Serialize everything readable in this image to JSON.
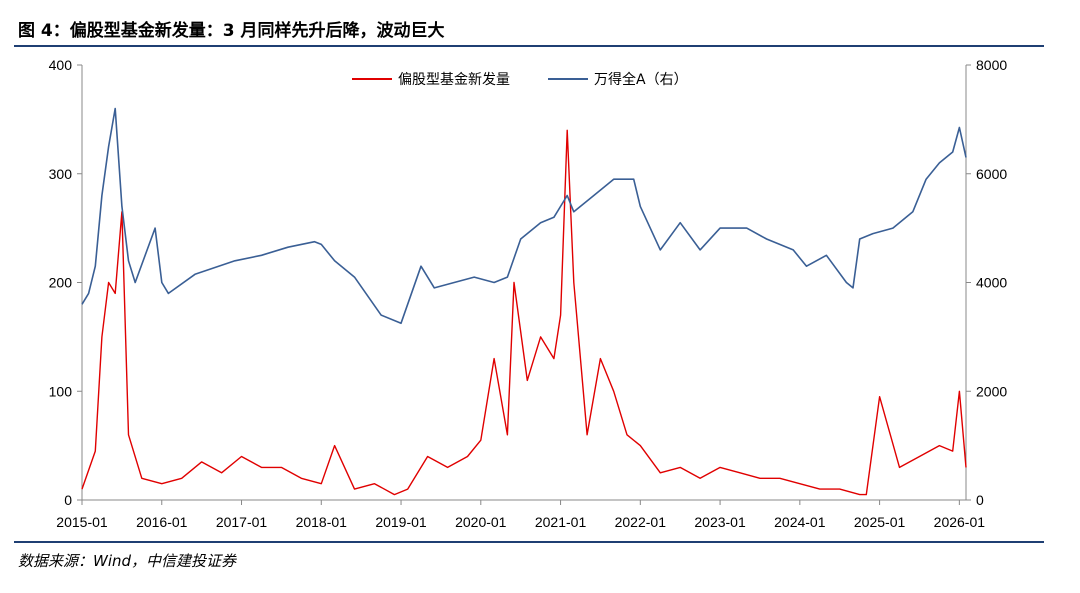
{
  "figure": {
    "title": "图 4：偏股型基金新发量：3 月同样先升后降，波动巨大",
    "source": "数据来源：Wind，中信建投证券"
  },
  "colors": {
    "fund_series": "#e00000",
    "index_series": "#3a5f95",
    "rule": "#1f3f73"
  },
  "chart_data": {
    "type": "line",
    "title": "图 4：偏股型基金新发量：3 月同样先升后降，波动巨大",
    "xlabel": "",
    "ylabel_left": "",
    "ylabel_right": "",
    "x_ticks": [
      "2015-01",
      "2016-01",
      "2017-01",
      "2018-01",
      "2019-01",
      "2020-01",
      "2021-01",
      "2022-01",
      "2023-01",
      "2024-01",
      "2025-01",
      "2026-01"
    ],
    "x_range": [
      "2015-01",
      "2026-02"
    ],
    "ylim_left": [
      0,
      400
    ],
    "ylim_right": [
      0,
      8000
    ],
    "y_ticks_left": [
      0,
      100,
      200,
      300,
      400
    ],
    "y_ticks_right": [
      0,
      2000,
      4000,
      6000,
      8000
    ],
    "grid": false,
    "legend_position": "top-center",
    "series": [
      {
        "name": "偏股型基金新发量",
        "axis": "left",
        "color": "#e00000",
        "x": [
          "2015-01",
          "2015-03",
          "2015-04",
          "2015-05",
          "2015-06",
          "2015-07",
          "2015-08",
          "2015-10",
          "2016-01",
          "2016-04",
          "2016-07",
          "2016-10",
          "2017-01",
          "2017-04",
          "2017-07",
          "2017-10",
          "2018-01",
          "2018-03",
          "2018-06",
          "2018-09",
          "2018-12",
          "2019-02",
          "2019-05",
          "2019-08",
          "2019-11",
          "2020-01",
          "2020-03",
          "2020-05",
          "2020-06",
          "2020-08",
          "2020-10",
          "2020-12",
          "2021-01",
          "2021-02",
          "2021-03",
          "2021-05",
          "2021-07",
          "2021-09",
          "2021-11",
          "2022-01",
          "2022-04",
          "2022-07",
          "2022-10",
          "2023-01",
          "2023-04",
          "2023-07",
          "2023-10",
          "2024-01",
          "2024-04",
          "2024-07",
          "2024-10",
          "2024-11",
          "2025-01",
          "2025-04",
          "2025-07",
          "2025-10",
          "2025-12",
          "2026-01",
          "2026-02"
        ],
        "values": [
          10,
          45,
          150,
          200,
          190,
          265,
          60,
          20,
          15,
          20,
          35,
          25,
          40,
          30,
          30,
          20,
          15,
          50,
          10,
          15,
          5,
          10,
          40,
          30,
          40,
          55,
          130,
          60,
          200,
          110,
          150,
          130,
          170,
          340,
          200,
          60,
          130,
          100,
          60,
          50,
          25,
          30,
          20,
          30,
          25,
          20,
          20,
          15,
          10,
          10,
          5,
          5,
          95,
          30,
          40,
          50,
          45,
          100,
          30
        ]
      },
      {
        "name": "万得全A（右）",
        "axis": "right",
        "color": "#3a5f95",
        "x": [
          "2015-01",
          "2015-02",
          "2015-03",
          "2015-04",
          "2015-05",
          "2015-06",
          "2015-07",
          "2015-08",
          "2015-09",
          "2015-12",
          "2016-01",
          "2016-02",
          "2016-06",
          "2016-12",
          "2017-04",
          "2017-08",
          "2017-12",
          "2018-01",
          "2018-03",
          "2018-06",
          "2018-10",
          "2019-01",
          "2019-04",
          "2019-06",
          "2019-09",
          "2019-12",
          "2020-03",
          "2020-05",
          "2020-07",
          "2020-10",
          "2020-12",
          "2021-02",
          "2021-03",
          "2021-06",
          "2021-09",
          "2021-12",
          "2022-01",
          "2022-04",
          "2022-07",
          "2022-10",
          "2023-01",
          "2023-05",
          "2023-08",
          "2023-12",
          "2024-02",
          "2024-05",
          "2024-08",
          "2024-09",
          "2024-10",
          "2024-12",
          "2025-03",
          "2025-06",
          "2025-08",
          "2025-10",
          "2025-12",
          "2026-01",
          "2026-02"
        ],
        "values": [
          3600,
          3800,
          4300,
          5600,
          6500,
          7200,
          5400,
          4400,
          4000,
          5000,
          4000,
          3800,
          4150,
          4400,
          4500,
          4650,
          4750,
          4700,
          4400,
          4100,
          3400,
          3250,
          4300,
          3900,
          4000,
          4100,
          4000,
          4100,
          4800,
          5100,
          5200,
          5600,
          5300,
          5600,
          5900,
          5900,
          5400,
          4600,
          5100,
          4600,
          5000,
          5000,
          4800,
          4600,
          4300,
          4500,
          4000,
          3900,
          4800,
          4900,
          5000,
          5300,
          5900,
          6200,
          6400,
          6850,
          6300
        ]
      }
    ]
  }
}
